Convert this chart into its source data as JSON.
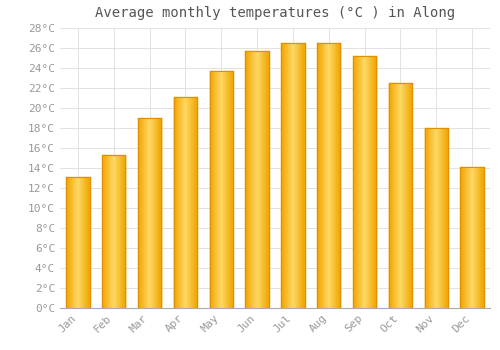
{
  "months": [
    "Jan",
    "Feb",
    "Mar",
    "Apr",
    "May",
    "Jun",
    "Jul",
    "Aug",
    "Sep",
    "Oct",
    "Nov",
    "Dec"
  ],
  "values": [
    13.1,
    15.3,
    19.0,
    21.1,
    23.7,
    25.7,
    26.5,
    26.5,
    25.2,
    22.5,
    18.0,
    14.1
  ],
  "bar_color_center": "#FFD966",
  "bar_color_edge": "#F0A500",
  "title": "Average monthly temperatures (°C ) in Along",
  "ylim": [
    0,
    28
  ],
  "ytick_step": 2,
  "background_color": "#FFFFFF",
  "grid_color": "#DDDDDD",
  "title_fontsize": 10,
  "tick_fontsize": 8,
  "tick_color": "#999999",
  "bar_width": 0.65
}
